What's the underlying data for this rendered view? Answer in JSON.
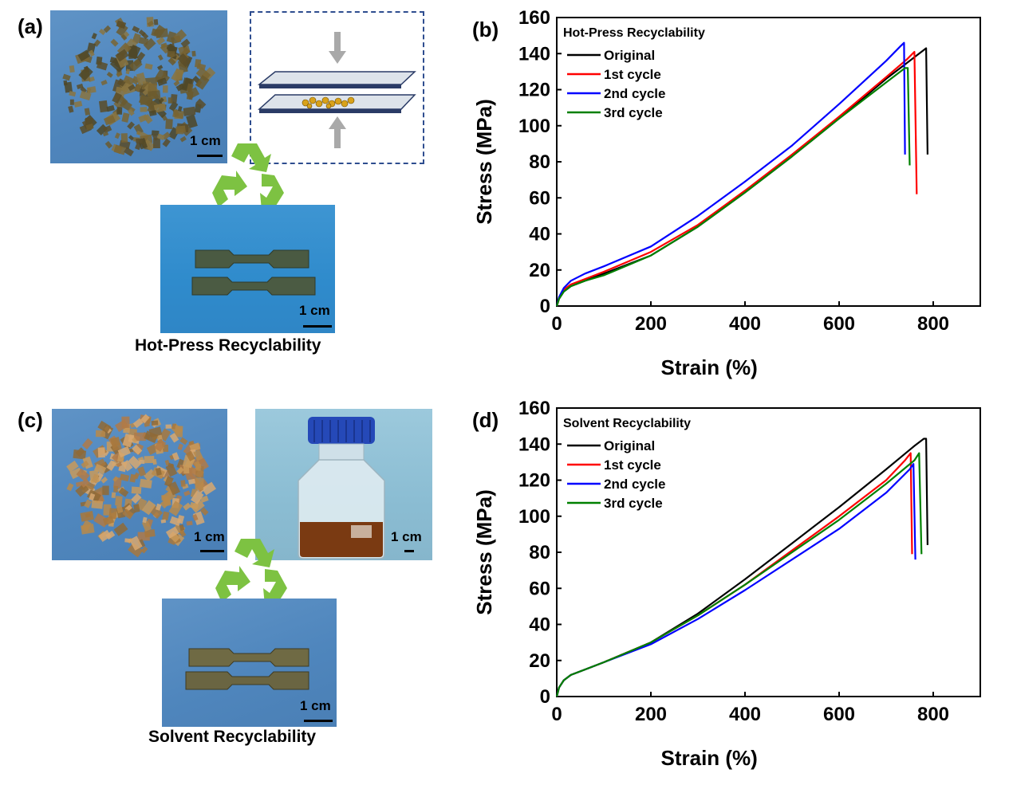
{
  "panels": {
    "a": {
      "label": "(a)",
      "scale_top": "1 cm",
      "scale_bottom": "1 cm",
      "caption": "Hot-Press Recyclability"
    },
    "b": {
      "label": "(b)"
    },
    "c": {
      "label": "(c)",
      "scale_left": "1 cm",
      "scale_right": "1 cm",
      "scale_bottom": "1 cm",
      "caption": "Solvent Recyclability"
    },
    "d": {
      "label": "(d)"
    }
  },
  "icons": [
    "recycle-icon",
    "hot-press-schematic-icon",
    "glass-bottle-icon"
  ],
  "colors": {
    "original": "#000000",
    "cycle1": "#ff0000",
    "cycle2": "#0000ff",
    "cycle3": "#008000",
    "recycle": "#7dc242",
    "press_frame": "#2e4d8f"
  },
  "chart_data": [
    {
      "type": "line",
      "title": "Hot-Press Recyclability",
      "xlabel": "Strain (%)",
      "ylabel": "Stress (MPa)",
      "xlim": [
        0,
        900
      ],
      "ylim": [
        0,
        160
      ],
      "xticks": [
        0,
        200,
        400,
        600,
        800
      ],
      "yticks": [
        0,
        20,
        40,
        60,
        80,
        100,
        120,
        140,
        160
      ],
      "legend_position": "top-left",
      "series": [
        {
          "name": "Original",
          "color": "#000000",
          "points": [
            [
              0,
              0
            ],
            [
              5,
              4
            ],
            [
              15,
              8
            ],
            [
              30,
              11
            ],
            [
              60,
              14
            ],
            [
              100,
              18
            ],
            [
              200,
              28
            ],
            [
              300,
              44
            ],
            [
              400,
              63
            ],
            [
              500,
              83
            ],
            [
              600,
              104
            ],
            [
              700,
              126
            ],
            [
              760,
              138
            ],
            [
              780,
              142
            ],
            [
              785,
              143
            ],
            [
              788,
              84
            ]
          ]
        },
        {
          "name": "1st cycle",
          "color": "#ff0000",
          "points": [
            [
              0,
              0
            ],
            [
              5,
              4
            ],
            [
              15,
              9
            ],
            [
              30,
              12
            ],
            [
              60,
              15
            ],
            [
              100,
              19
            ],
            [
              200,
              30
            ],
            [
              300,
              45
            ],
            [
              400,
              64
            ],
            [
              500,
              84
            ],
            [
              600,
              105
            ],
            [
              700,
              127
            ],
            [
              745,
              137
            ],
            [
              760,
              141
            ],
            [
              765,
              62
            ]
          ]
        },
        {
          "name": "2nd cycle",
          "color": "#0000ff",
          "points": [
            [
              0,
              0
            ],
            [
              5,
              5
            ],
            [
              15,
              10
            ],
            [
              30,
              14
            ],
            [
              60,
              18
            ],
            [
              100,
              22
            ],
            [
              200,
              33
            ],
            [
              300,
              50
            ],
            [
              400,
              69
            ],
            [
              500,
              89
            ],
            [
              600,
              112
            ],
            [
              700,
              136
            ],
            [
              730,
              144
            ],
            [
              738,
              146
            ],
            [
              740,
              84
            ]
          ]
        },
        {
          "name": "3rd cycle",
          "color": "#008000",
          "points": [
            [
              0,
              0
            ],
            [
              5,
              4
            ],
            [
              15,
              8
            ],
            [
              30,
              11
            ],
            [
              60,
              14
            ],
            [
              100,
              17
            ],
            [
              200,
              28
            ],
            [
              300,
              44
            ],
            [
              400,
              63
            ],
            [
              500,
              83
            ],
            [
              600,
              104
            ],
            [
              700,
              124
            ],
            [
              740,
              132
            ],
            [
              746,
              132
            ],
            [
              750,
              78
            ]
          ]
        }
      ]
    },
    {
      "type": "line",
      "title": "Solvent Recyclability",
      "xlabel": "Strain (%)",
      "ylabel": "Stress (MPa)",
      "xlim": [
        0,
        900
      ],
      "ylim": [
        0,
        160
      ],
      "xticks": [
        0,
        200,
        400,
        600,
        800
      ],
      "yticks": [
        0,
        20,
        40,
        60,
        80,
        100,
        120,
        140,
        160
      ],
      "legend_position": "top-left",
      "series": [
        {
          "name": "Original",
          "color": "#000000",
          "points": [
            [
              0,
              0
            ],
            [
              5,
              5
            ],
            [
              15,
              9
            ],
            [
              30,
              12
            ],
            [
              60,
              15
            ],
            [
              100,
              19
            ],
            [
              200,
              30
            ],
            [
              300,
              46
            ],
            [
              400,
              65
            ],
            [
              500,
              85
            ],
            [
              600,
              105
            ],
            [
              700,
              126
            ],
            [
              760,
              139
            ],
            [
              780,
              143
            ],
            [
              785,
              143
            ],
            [
              788,
              84
            ]
          ]
        },
        {
          "name": "1st cycle",
          "color": "#ff0000",
          "points": [
            [
              0,
              0
            ],
            [
              5,
              5
            ],
            [
              15,
              9
            ],
            [
              30,
              12
            ],
            [
              60,
              15
            ],
            [
              100,
              19
            ],
            [
              200,
              30
            ],
            [
              300,
              45
            ],
            [
              400,
              62
            ],
            [
              500,
              81
            ],
            [
              600,
              100
            ],
            [
              700,
              120
            ],
            [
              740,
              131
            ],
            [
              752,
              135
            ],
            [
              755,
              79
            ]
          ]
        },
        {
          "name": "2nd cycle",
          "color": "#0000ff",
          "points": [
            [
              0,
              0
            ],
            [
              5,
              5
            ],
            [
              15,
              9
            ],
            [
              30,
              12
            ],
            [
              60,
              15
            ],
            [
              100,
              19
            ],
            [
              200,
              29
            ],
            [
              300,
              43
            ],
            [
              400,
              59
            ],
            [
              500,
              76
            ],
            [
              600,
              93
            ],
            [
              700,
              113
            ],
            [
              750,
              126
            ],
            [
              758,
              129
            ],
            [
              762,
              76
            ]
          ]
        },
        {
          "name": "3rd cycle",
          "color": "#008000",
          "points": [
            [
              0,
              0
            ],
            [
              5,
              5
            ],
            [
              15,
              9
            ],
            [
              30,
              12
            ],
            [
              60,
              15
            ],
            [
              100,
              19
            ],
            [
              200,
              30
            ],
            [
              300,
              45
            ],
            [
              400,
              62
            ],
            [
              500,
              80
            ],
            [
              600,
              98
            ],
            [
              700,
              118
            ],
            [
              760,
              131
            ],
            [
              770,
              135
            ],
            [
              775,
              79
            ]
          ]
        }
      ]
    }
  ]
}
